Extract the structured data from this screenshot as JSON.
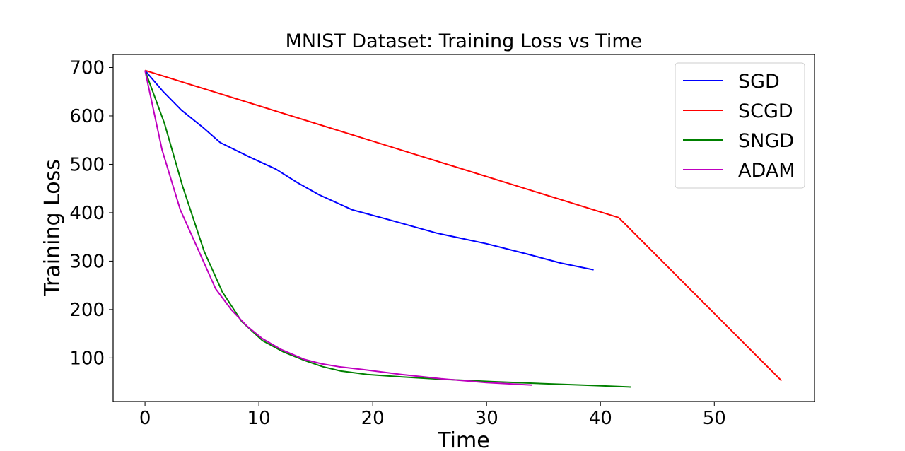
{
  "chart_data": {
    "type": "line",
    "title": "MNIST Dataset:  Training Loss vs Time",
    "xlabel": "Time",
    "ylabel": "Training Loss",
    "xlim": [
      -2.8,
      58.8
    ],
    "ylim": [
      10,
      727
    ],
    "xticks": [
      0,
      10,
      20,
      30,
      40,
      50
    ],
    "xtick_labels": [
      "0",
      "10",
      "20",
      "30",
      "40",
      "50"
    ],
    "yticks": [
      100,
      200,
      300,
      400,
      500,
      600,
      700
    ],
    "ytick_labels": [
      "100",
      "200",
      "300",
      "400",
      "500",
      "600",
      "700"
    ],
    "grid": false,
    "legend_position": "top-right",
    "series": [
      {
        "name": "SGD",
        "color": "#0000ff",
        "x": [
          0,
          1.6,
          3.2,
          5.1,
          6.6,
          9.2,
          11.5,
          13.4,
          15.3,
          18.2,
          21.5,
          25.6,
          30.0,
          33.5,
          36.5,
          39.4
        ],
        "y": [
          694,
          650,
          612,
          576,
          545,
          515,
          490,
          462,
          437,
          406,
          385,
          358,
          336,
          315,
          296,
          282
        ]
      },
      {
        "name": "SCGD",
        "color": "#ff0000",
        "x": [
          0,
          41.6,
          55.9
        ],
        "y": [
          694,
          390,
          53
        ]
      },
      {
        "name": "SNGD",
        "color": "#008000",
        "x": [
          0,
          1.7,
          3.3,
          5.2,
          6.8,
          8.5,
          10.3,
          12.2,
          14.0,
          15.6,
          17.2,
          19.5,
          22.5,
          26.0,
          30.5,
          35.0,
          39.5,
          42.7
        ],
        "y": [
          694,
          585,
          455,
          320,
          236,
          175,
          136,
          112,
          95,
          82,
          73,
          66,
          61,
          56,
          51,
          47,
          43,
          40
        ]
      },
      {
        "name": "ADAM",
        "color": "#bf00bf",
        "x": [
          0,
          1.5,
          3.1,
          4.7,
          6.2,
          7.6,
          9.0,
          10.3,
          12.0,
          14.0,
          15.5,
          17.0,
          19.5,
          22.5,
          26.0,
          30.0,
          34.0
        ],
        "y": [
          694,
          530,
          406,
          322,
          243,
          199,
          165,
          140,
          117,
          97,
          88,
          82,
          75,
          66,
          57,
          49,
          44
        ]
      }
    ]
  }
}
